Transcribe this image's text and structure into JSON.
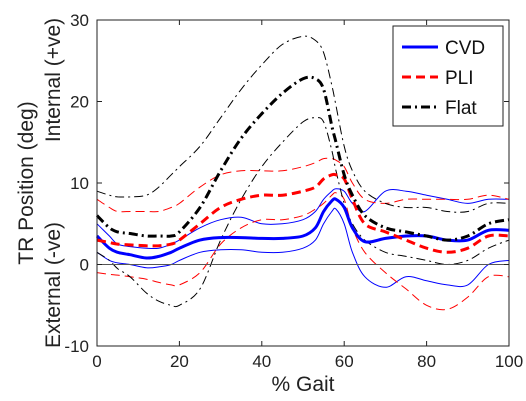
{
  "chart_data": {
    "type": "line",
    "xlabel": "% Gait",
    "ylabel": "TR Position (deg)",
    "ylabel_upper": "Internal (+ve)",
    "ylabel_lower": "External (-ve)",
    "xlim": [
      0,
      100
    ],
    "ylim": [
      -10,
      30
    ],
    "xticks": [
      0,
      20,
      40,
      60,
      80,
      100
    ],
    "yticks": [
      -10,
      0,
      10,
      20,
      30
    ],
    "grid": false,
    "legend_position": "top-right",
    "zero_line": true,
    "series": [
      {
        "name": "CVD",
        "color": "#0000ff",
        "dash": "solid",
        "x": [
          0,
          3,
          5,
          8,
          12,
          15,
          18,
          20,
          25,
          30,
          35,
          40,
          45,
          50,
          53,
          55,
          57,
          58,
          60,
          62,
          65,
          70,
          75,
          80,
          85,
          90,
          95,
          100
        ],
        "mean": [
          3.5,
          2.0,
          1.5,
          1.2,
          0.8,
          1.0,
          1.5,
          2.0,
          3.0,
          3.3,
          3.3,
          3.2,
          3.2,
          3.5,
          4.5,
          6.5,
          7.8,
          8.0,
          7.0,
          4.5,
          2.8,
          3.2,
          3.5,
          3.5,
          3.0,
          3.0,
          4.2,
          4.2
        ],
        "upper": [
          5.0,
          3.5,
          2.5,
          2.2,
          2.0,
          2.0,
          2.5,
          3.0,
          4.5,
          5.5,
          5.8,
          5.0,
          5.0,
          5.5,
          6.5,
          8.0,
          9.0,
          9.3,
          9.0,
          7.5,
          6.5,
          9.0,
          9.0,
          8.5,
          8.0,
          7.5,
          8.0,
          8.0
        ],
        "lower": [
          1.5,
          0.5,
          0.2,
          0.0,
          -0.4,
          -0.3,
          0.0,
          0.5,
          1.5,
          1.8,
          1.8,
          1.5,
          1.5,
          2.0,
          3.0,
          5.0,
          6.5,
          6.8,
          5.0,
          1.5,
          -1.5,
          -2.8,
          -1.5,
          -2.0,
          -2.5,
          -2.5,
          0.0,
          0.5
        ]
      },
      {
        "name": "PLI",
        "color": "#ff0000",
        "dash": "dashed",
        "x": [
          0,
          3,
          5,
          8,
          12,
          15,
          18,
          20,
          25,
          30,
          35,
          40,
          45,
          50,
          53,
          55,
          57,
          58,
          60,
          62,
          65,
          70,
          75,
          80,
          85,
          90,
          95,
          100
        ],
        "mean": [
          3.0,
          2.7,
          2.5,
          2.4,
          2.3,
          2.3,
          2.5,
          3.0,
          5.0,
          7.0,
          8.0,
          8.5,
          8.5,
          9.0,
          9.5,
          10.5,
          11.0,
          11.0,
          10.5,
          8.0,
          5.0,
          4.0,
          3.0,
          2.0,
          1.5,
          2.0,
          3.5,
          3.5
        ],
        "upper": [
          8.0,
          7.0,
          6.5,
          6.5,
          6.5,
          6.5,
          7.0,
          7.5,
          9.5,
          11.0,
          11.5,
          11.5,
          11.5,
          12.0,
          12.5,
          13.0,
          13.0,
          12.8,
          12.0,
          10.0,
          8.0,
          7.5,
          8.0,
          8.0,
          8.0,
          8.0,
          8.5,
          8.0
        ],
        "lower": [
          -1.0,
          -1.2,
          -1.3,
          -1.5,
          -1.8,
          -2.2,
          -2.5,
          -2.5,
          -1.0,
          2.5,
          4.5,
          5.5,
          5.5,
          6.0,
          6.8,
          7.5,
          8.5,
          8.8,
          8.0,
          4.5,
          1.5,
          -1.0,
          -3.0,
          -5.0,
          -5.5,
          -4.0,
          -1.5,
          -1.5
        ]
      },
      {
        "name": "Flat",
        "color": "#000000",
        "dash": "dashdot",
        "x": [
          0,
          3,
          5,
          8,
          12,
          15,
          18,
          20,
          25,
          30,
          35,
          40,
          45,
          50,
          53,
          55,
          57,
          58,
          60,
          62,
          65,
          70,
          75,
          80,
          85,
          90,
          95,
          100
        ],
        "mean": [
          6.0,
          4.5,
          4.0,
          3.8,
          3.5,
          3.5,
          3.5,
          4.0,
          7.0,
          11.5,
          15.5,
          18.5,
          21.0,
          22.8,
          22.8,
          21.5,
          17.0,
          15.0,
          11.0,
          8.5,
          6.0,
          4.5,
          4.0,
          3.5,
          3.0,
          3.5,
          5.0,
          5.5
        ],
        "upper": [
          9.0,
          8.5,
          8.3,
          8.3,
          8.5,
          9.5,
          11.0,
          12.0,
          14.5,
          18.0,
          21.5,
          24.5,
          27.0,
          28.0,
          27.5,
          26.0,
          22.0,
          19.5,
          14.5,
          11.5,
          9.0,
          7.5,
          7.0,
          7.0,
          6.5,
          6.5,
          7.5,
          7.5
        ],
        "lower": [
          1.5,
          0.5,
          -0.5,
          -1.5,
          -3.5,
          -4.5,
          -5.0,
          -5.0,
          -3.0,
          3.0,
          8.0,
          12.0,
          15.0,
          17.5,
          18.0,
          17.5,
          14.0,
          11.5,
          7.5,
          5.0,
          3.0,
          1.5,
          1.0,
          0.5,
          0.0,
          0.5,
          2.0,
          3.0
        ]
      }
    ]
  }
}
